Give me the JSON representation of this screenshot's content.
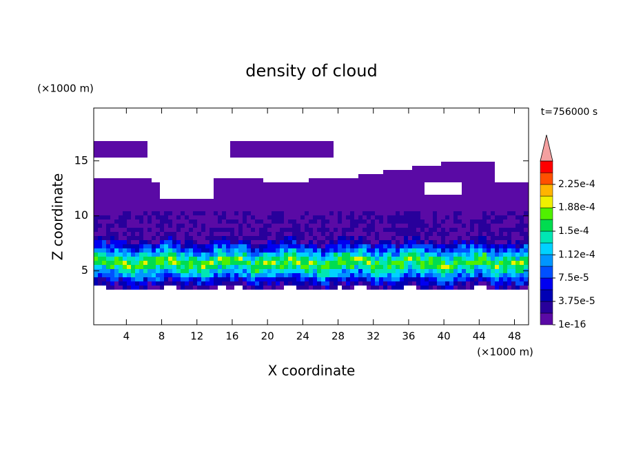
{
  "chart_data": {
    "type": "contour",
    "title": "density of cloud",
    "x_label": "X coordinate",
    "y_label": "Z coordinate",
    "x_unit": "(×1000 m)",
    "y_unit": "(×1000 m)",
    "time_label": "t=756000 s",
    "xlim": [
      0.3,
      49.6
    ],
    "ylim": [
      0.1,
      19.8
    ],
    "xticks": [
      4,
      8,
      12,
      16,
      20,
      24,
      28,
      32,
      36,
      40,
      44,
      48
    ],
    "yticks": [
      5,
      10,
      15
    ],
    "colorbar": {
      "ticks": [
        {
          "value": 1e-16,
          "label": "1e-16"
        },
        {
          "value": 3.75e-05,
          "label": "3.75e-5"
        },
        {
          "value": 7.5e-05,
          "label": "7.5e-5"
        },
        {
          "value": 0.000112,
          "label": "1.12e-4"
        },
        {
          "value": 0.00015,
          "label": "1.5e-4"
        },
        {
          "value": 0.000188,
          "label": "1.88e-4"
        },
        {
          "value": 0.000225,
          "label": "2.25e-4"
        }
      ],
      "colors": [
        "#5a0aa5",
        "#28009b",
        "#0000b4",
        "#0000f0",
        "#0050ff",
        "#0096ff",
        "#00d2ff",
        "#00e6b4",
        "#00dc50",
        "#50f000",
        "#f0f000",
        "#ffb400",
        "#ff5000",
        "#ff0000"
      ],
      "extend_color": "#f4a0a0"
    }
  }
}
